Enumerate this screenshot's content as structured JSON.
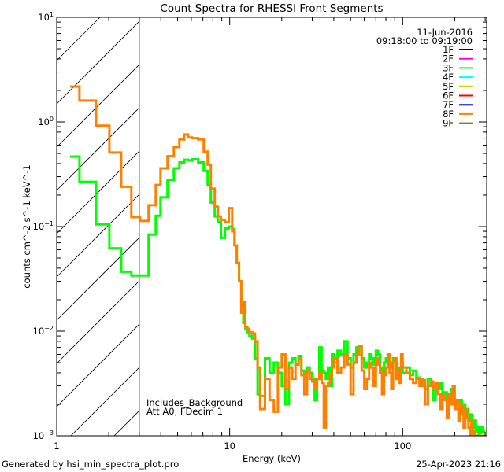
{
  "chart_data": {
    "type": "line",
    "title": "Count Spectra for RHESSI Front Segments",
    "xlabel": "Energy (keV)",
    "ylabel": "counts cm^-2 s^-1 keV^-1",
    "ylabel_parts": {
      "base": "counts cm",
      "exp1": "−2",
      "mid": " s",
      "exp2": "−1",
      "end": " keV",
      "exp3": "−1"
    },
    "xscale": "log",
    "yscale": "log",
    "xlim": [
      1,
      306
    ],
    "ylim": [
      0.001,
      10
    ],
    "x_ticks": [
      {
        "value": 1,
        "label": "1"
      },
      {
        "value": 10,
        "label": "10"
      },
      {
        "value": 100,
        "label": "100"
      }
    ],
    "y_ticks": [
      {
        "value": 10,
        "base": "10",
        "exp": "1"
      },
      {
        "value": 1,
        "base": "10",
        "exp": "0"
      },
      {
        "value": 0.1,
        "base": "10",
        "exp": "−1"
      },
      {
        "value": 0.01,
        "base": "10",
        "exp": "−2"
      },
      {
        "value": 0.001,
        "base": "10",
        "exp": "−3"
      }
    ],
    "grid": false,
    "hatched_region": {
      "from": 1,
      "to": 3.0
    },
    "date": "11-Jun-2016",
    "time_range": "09:18:00 to 09:19:00",
    "legend_position": "top-right",
    "legend": [
      {
        "name": "1F",
        "color": "#000000"
      },
      {
        "name": "2F",
        "color": "#ff00ff"
      },
      {
        "name": "3F",
        "color": "#00ff00"
      },
      {
        "name": "4F",
        "color": "#00ffff"
      },
      {
        "name": "5F",
        "color": "#d4d400"
      },
      {
        "name": "6F",
        "color": "#ff0000"
      },
      {
        "name": "7F",
        "color": "#0000ff"
      },
      {
        "name": "8F",
        "color": "#ff8000"
      },
      {
        "name": "9F",
        "color": "#808000"
      }
    ],
    "annotations": [
      "Includes_Background",
      "Att A0, FDecim 1"
    ],
    "energy_edges": [
      1.195,
      1.354,
      1.687,
      2.016,
      2.36,
      2.7,
      3.03,
      3.4,
      3.74,
      3.98,
      4.37,
      4.76,
      5.12,
      5.45,
      5.74,
      6.05,
      6.58,
      7.08,
      7.46,
      7.78,
      8.2,
      8.55,
      8.91,
      9.39,
      9.89,
      10.33,
      10.67,
      11,
      11.33,
      11.67,
      12,
      12.33,
      12.67,
      13,
      13.5,
      14,
      14.5,
      15,
      16,
      17,
      18,
      19,
      20,
      21,
      22,
      23,
      24,
      25,
      26,
      27,
      28,
      29,
      30,
      31,
      32,
      33,
      34,
      35,
      36,
      37,
      38,
      39,
      40,
      42,
      44,
      46,
      48,
      50,
      52,
      54,
      56,
      58,
      60,
      62,
      64,
      66,
      68,
      70,
      72,
      74,
      76,
      78,
      80,
      82,
      84,
      86,
      88,
      90,
      92,
      94,
      96,
      98,
      100,
      105,
      110,
      115,
      120,
      125,
      130,
      135,
      140,
      145,
      150,
      155,
      160,
      165,
      170,
      175,
      180,
      185,
      190,
      195,
      200,
      205,
      210,
      215,
      220,
      225,
      230,
      235,
      240,
      245,
      250,
      255,
      260,
      265,
      270,
      275,
      280,
      285,
      290,
      295,
      300
    ],
    "series": [
      {
        "name": "3F",
        "color": "#00ff00",
        "values": [
          0.467,
          0.268,
          0.105,
          0.062,
          0.037,
          0.034,
          0.034,
          0.084,
          0.127,
          0.19,
          0.28,
          0.36,
          0.41,
          0.435,
          0.43,
          0.44,
          0.41,
          0.34,
          0.25,
          0.17,
          0.125,
          0.11,
          0.078,
          0.096,
          0.1,
          0.095,
          0.066,
          0.045,
          0.03,
          0.017,
          0.012,
          0.0105,
          0.0098,
          0.009,
          0.0085,
          0.0055,
          0.0025,
          0.0024,
          0.0055,
          0.004,
          0.005,
          0.004,
          0.003,
          0.002,
          0.005,
          0.0055,
          0.0048,
          0.0058,
          0.0042,
          0.004,
          0.0045,
          0.004,
          0.0035,
          0.0022,
          0.0035,
          0.007,
          0.0042,
          0.004,
          0.0035,
          0.0045,
          0.003,
          0.006,
          0.005,
          0.0065,
          0.006,
          0.008,
          0.0055,
          0.0045,
          0.006,
          0.007,
          0.0072,
          0.0055,
          0.0045,
          0.005,
          0.006,
          0.0055,
          0.0048,
          0.0065,
          0.006,
          0.0045,
          0.004,
          0.005,
          0.0055,
          0.006,
          0.005,
          0.0045,
          0.0055,
          0.005,
          0.004,
          0.0045,
          0.0042,
          0.005,
          0.004,
          0.0045,
          0.0038,
          0.0042,
          0.0036,
          0.0035,
          0.003,
          0.0028,
          0.0035,
          0.003,
          0.0022,
          0.003,
          0.0028,
          0.0032,
          0.0024,
          0.0026,
          0.0022,
          0.0025,
          0.0028,
          0.002,
          0.0022,
          0.002,
          0.0018,
          0.0022,
          0.0016,
          0.002,
          0.0015,
          0.0018,
          0.0014,
          0.0016,
          0.0013,
          0.0012,
          0.0014,
          0.0011,
          0.0012,
          0.001,
          0.0011,
          0.0012,
          0.0011,
          0.0011
        ]
      },
      {
        "name": "8F",
        "color": "#ff8000",
        "values": [
          2.18,
          1.6,
          0.92,
          0.51,
          0.24,
          0.123,
          0.113,
          0.16,
          0.25,
          0.36,
          0.47,
          0.575,
          0.68,
          0.76,
          0.71,
          0.7,
          0.68,
          0.52,
          0.39,
          0.23,
          0.155,
          0.125,
          0.116,
          0.11,
          0.15,
          0.09,
          0.066,
          0.045,
          0.03,
          0.015,
          0.019,
          0.011,
          0.0105,
          0.0098,
          0.0095,
          0.008,
          0.0045,
          0.0018,
          0.0035,
          0.0022,
          0.0017,
          0.0045,
          0.006,
          0.0028,
          0.0045,
          0.0035,
          0.0048,
          0.0055,
          0.0038,
          0.0025,
          0.0042,
          0.0035,
          0.0033,
          0.0028,
          0.0035,
          0.004,
          0.0032,
          0.0012,
          0.003,
          0.0032,
          0.0038,
          0.0045,
          0.0055,
          0.004,
          0.0045,
          0.006,
          0.0048,
          0.0025,
          0.005,
          0.006,
          0.007,
          0.0042,
          0.0028,
          0.0035,
          0.005,
          0.0045,
          0.003,
          0.0055,
          0.0048,
          0.004,
          0.0025,
          0.0038,
          0.0045,
          0.006,
          0.004,
          0.0028,
          0.005,
          0.0055,
          0.0035,
          0.0042,
          0.0032,
          0.006,
          0.0045,
          0.004,
          0.0035,
          0.0032,
          0.0035,
          0.003,
          0.0034,
          0.002,
          0.003,
          0.0033,
          0.0028,
          0.0032,
          0.0025,
          0.0018,
          0.0025,
          0.0022,
          0.0015,
          0.0025,
          0.002,
          0.003,
          0.0018,
          0.0022,
          0.0014,
          0.002,
          0.0016,
          0.0012,
          0.0018,
          0.0015,
          0.0012,
          0.001,
          0.0014,
          0.0011,
          0.001,
          0.001,
          0.001,
          0.001,
          0.001,
          0.001,
          0.001,
          0.001
        ]
      }
    ]
  },
  "footer": {
    "generated_by": "Generated by hsi_min_spectra_plot.pro",
    "timestamp": "25-Apr-2023 21:16"
  }
}
